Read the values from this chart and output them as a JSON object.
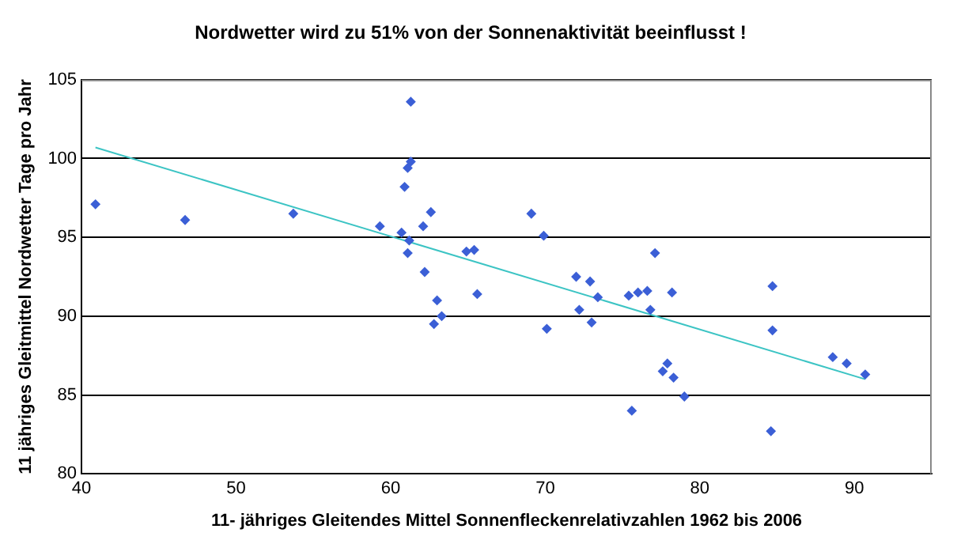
{
  "chart_data": {
    "type": "scatter",
    "title": "Nordwetter wird zu 51% von der Sonnenaktivität beeinflusst !",
    "xlabel": "11- jähriges Gleitendes Mittel Sonnenfleckenrelativzahlen 1962 bis 2006",
    "ylabel": "11 jähriges Gleitmittel Nordwetter Tage pro Jahr",
    "xlim": [
      40,
      95
    ],
    "xticks": [
      40,
      50,
      60,
      70,
      80,
      90
    ],
    "ylim": [
      80,
      105
    ],
    "yticks": [
      80,
      85,
      90,
      95,
      100,
      105
    ],
    "grid": "y",
    "legend": false,
    "marker": "diamond",
    "series": [
      {
        "color": "#3b5fd6",
        "x": [
          40.9,
          46.7,
          53.7,
          59.3,
          60.7,
          61.2,
          61.1,
          60.9,
          61.1,
          61.3,
          61.3,
          62.1,
          62.6,
          62.2,
          63.0,
          63.3,
          62.8,
          64.9,
          65.4,
          65.6,
          69.1,
          69.9,
          70.1,
          72.0,
          72.2,
          72.9,
          73.0,
          73.4,
          75.4,
          75.6,
          76.0,
          76.6,
          76.8,
          77.1,
          77.6,
          77.9,
          78.2,
          78.3,
          79.0,
          84.6,
          84.7,
          84.7,
          88.6,
          89.5,
          90.7
        ],
        "values": [
          97.1,
          96.1,
          96.5,
          95.7,
          95.3,
          94.8,
          94.0,
          98.2,
          99.4,
          99.8,
          103.6,
          95.7,
          96.6,
          92.8,
          91.0,
          90.0,
          89.5,
          94.1,
          94.2,
          91.4,
          96.5,
          95.1,
          89.2,
          92.5,
          90.4,
          92.2,
          89.6,
          91.2,
          91.3,
          84.0,
          91.5,
          91.6,
          90.4,
          94.0,
          86.5,
          87.0,
          91.5,
          86.1,
          84.9,
          82.7,
          91.9,
          89.1,
          87.4,
          87.0,
          86.3
        ]
      },
      {
        "type": "line",
        "marker": "none",
        "color": "#3cc4c4",
        "x": [
          40.9,
          90.7
        ],
        "values": [
          100.7,
          86.0
        ]
      }
    ]
  }
}
